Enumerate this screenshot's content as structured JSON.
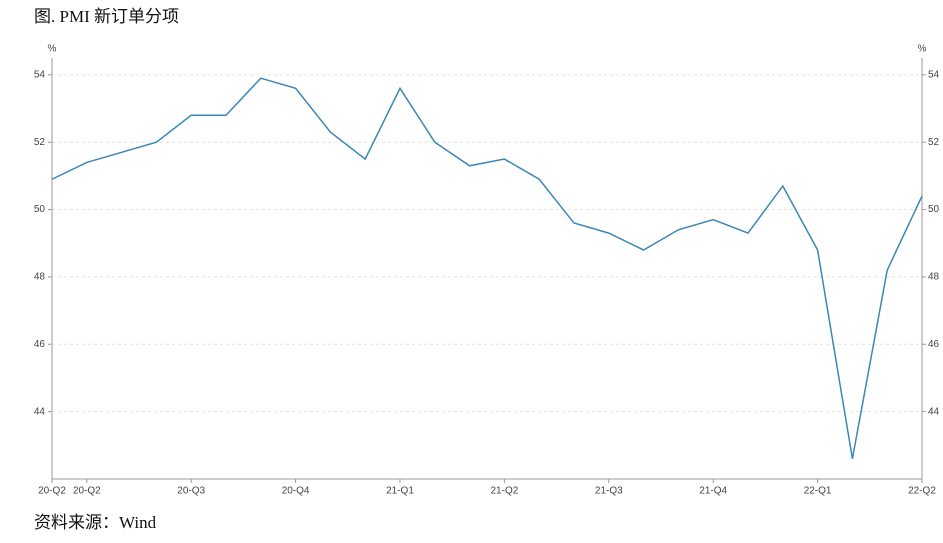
{
  "chart_data": {
    "type": "line",
    "title": "图. PMI 新订单分项",
    "source": "资料来源：Wind",
    "y_unit": "%",
    "y2_unit": "%",
    "categories": [
      "20-Q2",
      "20-Q2",
      null,
      null,
      "20-Q3",
      null,
      null,
      "20-Q4",
      null,
      null,
      "21-Q1",
      null,
      null,
      "21-Q2",
      null,
      null,
      "21-Q3",
      null,
      null,
      "21-Q4",
      null,
      null,
      "22-Q1",
      null,
      null,
      "22-Q2"
    ],
    "series": [
      {
        "color": "#3a87b8",
        "values": [
          50.9,
          51.4,
          51.7,
          52.0,
          52.8,
          52.8,
          53.9,
          53.6,
          52.3,
          51.5,
          53.6,
          52.0,
          51.3,
          51.5,
          50.9,
          49.6,
          49.3,
          48.8,
          49.4,
          49.7,
          49.3,
          50.7,
          48.8,
          42.6,
          48.2,
          50.4
        ]
      }
    ],
    "ylim": [
      42,
      54.5
    ],
    "yticks": [
      44,
      46,
      48,
      50,
      52,
      54
    ],
    "y2lim": [
      42,
      54.5
    ],
    "y2ticks": [
      44,
      46,
      48,
      50,
      52,
      54
    ],
    "grid": true
  }
}
